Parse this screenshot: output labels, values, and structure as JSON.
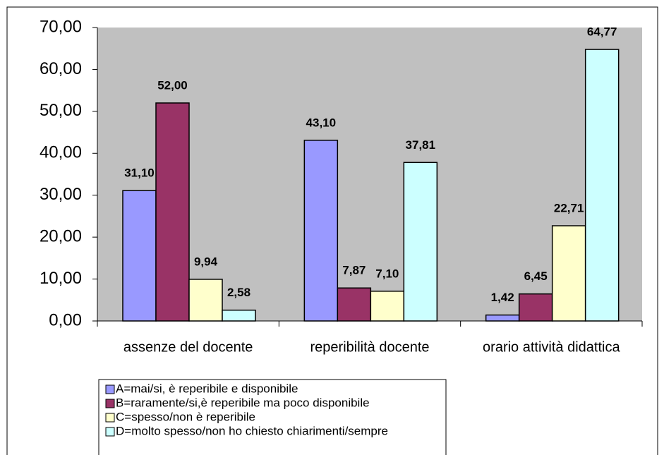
{
  "chart_data": {
    "type": "bar",
    "categories": [
      "assenze del docente",
      "reperibilità docente",
      "orario attività didattica"
    ],
    "series": [
      {
        "name": "A=mai/si, è reperibile e disponibile",
        "color": "#9999ff",
        "values": [
          31.1,
          43.1,
          1.42
        ],
        "value_labels": [
          "31,10",
          "43,10",
          "1,42"
        ]
      },
      {
        "name": "B=raramente/si,è reperibile ma poco disponibile",
        "color": "#993366",
        "values": [
          52.0,
          7.87,
          6.45
        ],
        "value_labels": [
          "52,00",
          "7,87",
          "6,45"
        ]
      },
      {
        "name": "C=spesso/non è reperibile",
        "color": "#ffffcc",
        "values": [
          9.94,
          7.1,
          22.71
        ],
        "value_labels": [
          "9,94",
          "7,10",
          "22,71"
        ]
      },
      {
        "name": "D=molto spesso/non ho chiesto chiarimenti/sempre",
        "color": "#ccffff",
        "values": [
          2.58,
          37.81,
          64.77
        ],
        "value_labels": [
          "2,58",
          "37,81",
          "64,77"
        ]
      }
    ],
    "ylim": [
      0,
      70
    ],
    "yticks": [
      {
        "value": 0,
        "label": "0,00"
      },
      {
        "value": 10,
        "label": "10,00"
      },
      {
        "value": 20,
        "label": "20,00"
      },
      {
        "value": 30,
        "label": "30,00"
      },
      {
        "value": 40,
        "label": "40,00"
      },
      {
        "value": 50,
        "label": "50,00"
      },
      {
        "value": 60,
        "label": "60,00"
      },
      {
        "value": 70,
        "label": "70,00"
      }
    ],
    "plot_background": "#c0c0c0"
  }
}
